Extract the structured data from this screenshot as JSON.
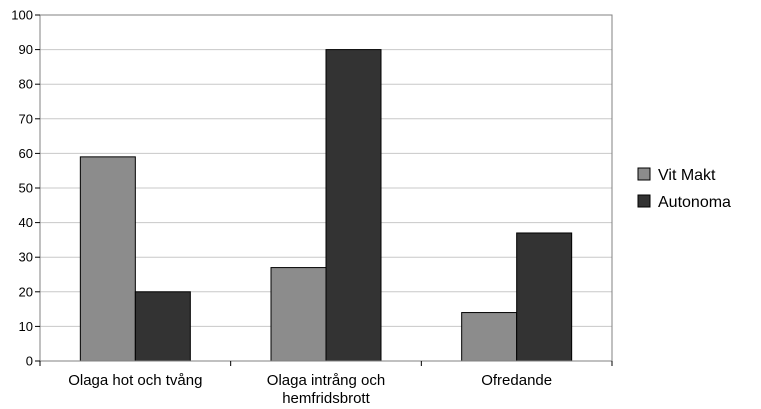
{
  "colors": {
    "background": "#ffffff",
    "gridline": "#c8c8c8",
    "axis": "#000000",
    "series_fill": [
      "#8c8c8c",
      "#333333"
    ],
    "bar_stroke": "#000000"
  },
  "chart_data": {
    "type": "bar",
    "title": "",
    "xlabel": "",
    "ylabel": "",
    "ylim": [
      0,
      100
    ],
    "yticks": [
      0,
      10,
      20,
      30,
      40,
      50,
      60,
      70,
      80,
      90,
      100
    ],
    "grid": true,
    "legend_position": "right",
    "categories": [
      [
        "Olaga hot och tvång"
      ],
      [
        "Olaga intrång och",
        "hemfridsbrott"
      ],
      [
        "Ofredande"
      ]
    ],
    "series": [
      {
        "name": "Vit Makt",
        "values": [
          59,
          27,
          14
        ]
      },
      {
        "name": "Autonoma",
        "values": [
          20,
          90,
          37
        ]
      }
    ]
  }
}
